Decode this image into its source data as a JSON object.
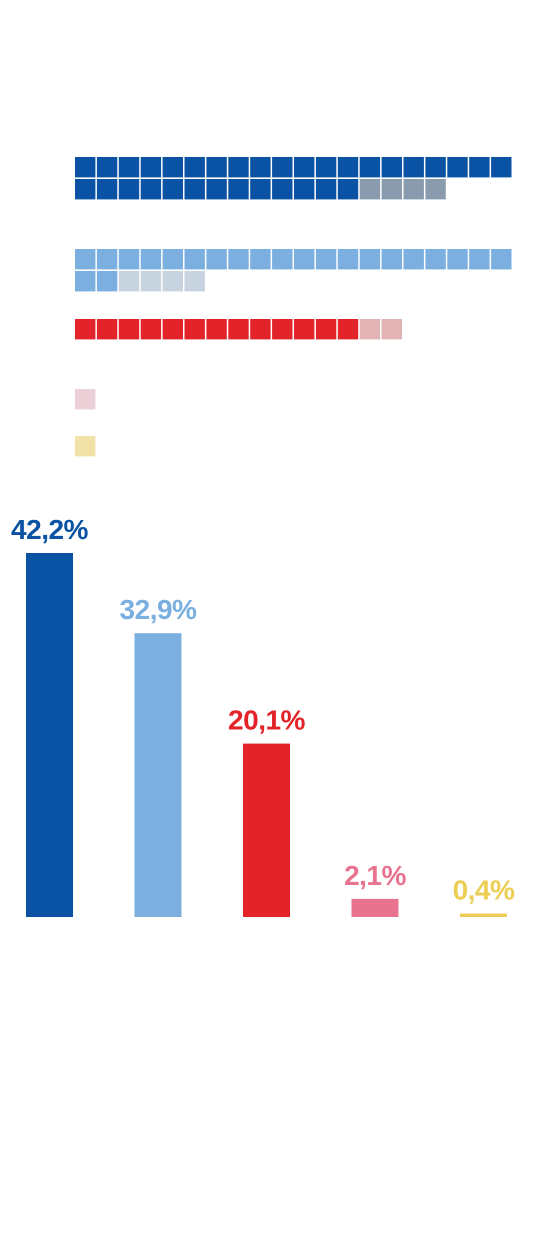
{
  "chart_data": [
    {
      "type": "waffle",
      "unit": "seat",
      "series": [
        {
          "filled": 33,
          "empty": 4,
          "color": "#0a52a3",
          "empty_color": "#8a9bae"
        },
        {
          "filled": 22,
          "empty": 4,
          "color": "#7aafe0",
          "empty_color": "#c7d4e0"
        },
        {
          "filled": 13,
          "empty": 2,
          "color": "#e3232a",
          "empty_color": "#e2b3b4"
        },
        {
          "filled": 0,
          "empty": 1,
          "color": "#e8738f",
          "empty_color": "#ecd0d8"
        },
        {
          "filled": 0,
          "empty": 1,
          "color": "#ecce55",
          "empty_color": "#f1e3a8"
        }
      ]
    },
    {
      "type": "bar",
      "values": [
        42.2,
        32.9,
        20.1,
        2.1,
        0.4
      ],
      "labels": [
        "42,2%",
        "32,9%",
        "20,1%",
        "2,1%",
        "0,4%"
      ],
      "colors": [
        "#0a52a3",
        "#7aafe0",
        "#e3232a",
        "#e8738f",
        "#ecce55"
      ],
      "ylim": [
        0,
        42.2
      ]
    }
  ]
}
